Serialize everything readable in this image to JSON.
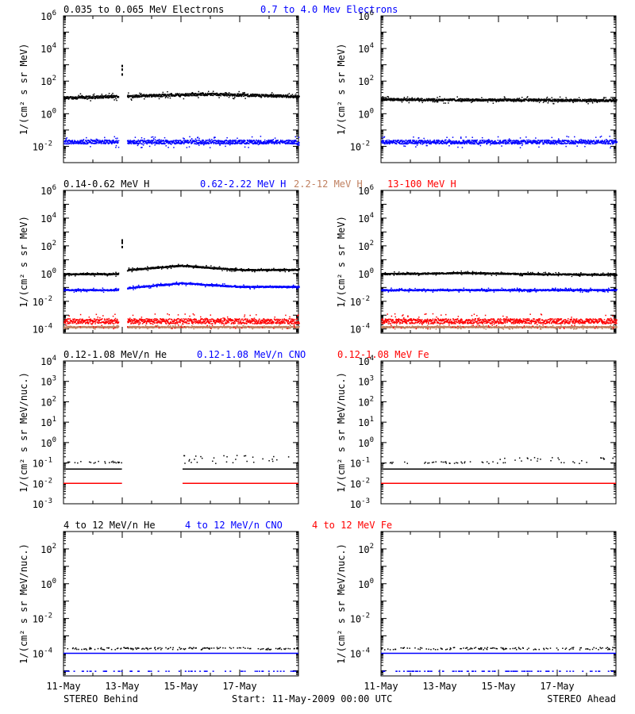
{
  "chart_data": [
    {
      "type": "scatter",
      "id": "electrons",
      "ylabel": "1/(cm² s sr MeV)",
      "yscale": "log",
      "ylim": [
        0.001,
        1000000
      ],
      "yticks": [
        {
          "exp": -2,
          "label": "10",
          "sup": "-2"
        },
        {
          "exp": 0,
          "label": "10",
          "sup": "0"
        },
        {
          "exp": 2,
          "label": "10",
          "sup": "2"
        },
        {
          "exp": 4,
          "label": "10",
          "sup": "4"
        },
        {
          "exp": 6,
          "label": "10",
          "sup": "6"
        }
      ],
      "legend": [
        {
          "text": "0.035 to 0.065 MeV Electrons",
          "color": "#000000"
        },
        {
          "text": "0.7 to 4.0 Mev Electrons",
          "color": "#0000ff"
        }
      ],
      "panels": [
        {
          "spacecraft": "STEREO Behind",
          "gap": [
            1.85,
            2.15
          ],
          "series": [
            {
              "color": "#000000",
              "base": 10,
              "profile": [
                [
                  0,
                  10
                ],
                [
                  3,
                  14
                ],
                [
                  5,
                  17
                ],
                [
                  8,
                  12
                ]
              ],
              "spread": 0.08,
              "spike": {
                "x": 2.0,
                "values": [
                  1000,
                  600,
                  300
                ]
              }
            },
            {
              "color": "#0000ff",
              "base": 0.02,
              "profile": [
                [
                  0,
                  0.02
                ],
                [
                  8,
                  0.02
                ]
              ],
              "spread": 0.12
            }
          ]
        },
        {
          "spacecraft": "STEREO Ahead",
          "gap": null,
          "series": [
            {
              "color": "#000000",
              "base": 7,
              "profile": [
                [
                  0,
                  8
                ],
                [
                  8,
                  7
                ]
              ],
              "spread": 0.07
            },
            {
              "color": "#0000ff",
              "base": 0.02,
              "profile": [
                [
                  0,
                  0.02
                ],
                [
                  8,
                  0.02
                ]
              ],
              "spread": 0.12
            }
          ]
        }
      ]
    },
    {
      "type": "scatter",
      "id": "protons",
      "ylabel": "1/(cm² s sr MeV)",
      "yscale": "log",
      "ylim": [
        5e-05,
        1000000
      ],
      "yticks": [
        {
          "exp": -4,
          "label": "10",
          "sup": "-4"
        },
        {
          "exp": -2,
          "label": "10",
          "sup": "-2"
        },
        {
          "exp": 0,
          "label": "10",
          "sup": "0"
        },
        {
          "exp": 2,
          "label": "10",
          "sup": "2"
        },
        {
          "exp": 4,
          "label": "10",
          "sup": "4"
        },
        {
          "exp": 6,
          "label": "10",
          "sup": "6"
        }
      ],
      "legend": [
        {
          "text": "0.14-0.62 MeV H",
          "color": "#000000"
        },
        {
          "text": "0.62-2.22 MeV H",
          "color": "#0000ff"
        },
        {
          "text": "2.2-12 MeV H",
          "color": "#c08060"
        },
        {
          "text": "13-100 MeV H",
          "color": "#ff0000"
        }
      ],
      "panels": [
        {
          "spacecraft": "STEREO Behind",
          "gap": [
            1.85,
            2.15
          ],
          "series": [
            {
              "color": "#000000",
              "base": 1.0,
              "profile": [
                [
                  0,
                  1.0
                ],
                [
                  1.8,
                  1.0
                ],
                [
                  2.2,
                  2.0
                ],
                [
                  4,
                  4
                ],
                [
                  6,
                  2
                ],
                [
                  8,
                  2
                ]
              ],
              "spread": 0.05,
              "spike": {
                "x": 2.0,
                "values": [
                  300,
                  200,
                  100
                ]
              }
            },
            {
              "color": "#0000ff",
              "base": 0.07,
              "profile": [
                [
                  0,
                  0.07
                ],
                [
                  1.8,
                  0.07
                ],
                [
                  2.2,
                  0.1
                ],
                [
                  4,
                  0.22
                ],
                [
                  6,
                  0.12
                ],
                [
                  8,
                  0.12
                ]
              ],
              "spread": 0.05
            },
            {
              "color": "#c08060",
              "base": 0.00015,
              "profile": [
                [
                  0,
                  0.00015
                ],
                [
                  8,
                  0.00015
                ]
              ],
              "spread": 0.05
            },
            {
              "color": "#ff0000",
              "base": 0.0004,
              "profile": [
                [
                  0,
                  0.0004
                ],
                [
                  8,
                  0.0004
                ]
              ],
              "spread": 0.18
            }
          ]
        },
        {
          "spacecraft": "STEREO Ahead",
          "gap": null,
          "series": [
            {
              "color": "#000000",
              "base": 1.0,
              "profile": [
                [
                  0,
                  1.0
                ],
                [
                  3,
                  1.2
                ],
                [
                  5,
                  1.0
                ],
                [
                  8,
                  0.9
                ]
              ],
              "spread": 0.05
            },
            {
              "color": "#0000ff",
              "base": 0.07,
              "profile": [
                [
                  0,
                  0.07
                ],
                [
                  8,
                  0.07
                ]
              ],
              "spread": 0.05
            },
            {
              "color": "#c08060",
              "base": 0.00015,
              "profile": [
                [
                  0,
                  0.00015
                ],
                [
                  8,
                  0.00015
                ]
              ],
              "spread": 0.05
            },
            {
              "color": "#ff0000",
              "base": 0.0004,
              "profile": [
                [
                  0,
                  0.0004
                ],
                [
                  8,
                  0.0004
                ]
              ],
              "spread": 0.18
            }
          ]
        }
      ]
    },
    {
      "type": "scatter",
      "id": "heavy-ions-low",
      "ylabel": "1/(cm² s sr MeV/nuc.)",
      "yscale": "log",
      "ylim": [
        0.001,
        10000
      ],
      "yticks": [
        {
          "exp": -3,
          "label": "10",
          "sup": "-3"
        },
        {
          "exp": -2,
          "label": "10",
          "sup": "-2"
        },
        {
          "exp": -1,
          "label": "10",
          "sup": "-1"
        },
        {
          "exp": 0,
          "label": "10",
          "sup": "0"
        },
        {
          "exp": 1,
          "label": "10",
          "sup": "1"
        },
        {
          "exp": 2,
          "label": "10",
          "sup": "2"
        },
        {
          "exp": 3,
          "label": "10",
          "sup": "3"
        },
        {
          "exp": 4,
          "label": "10",
          "sup": "4"
        }
      ],
      "legend": [
        {
          "text": "0.12-1.08 MeV/n He",
          "color": "#000000"
        },
        {
          "text": "0.12-1.08 MeV/n CNO",
          "color": "#0000ff"
        },
        {
          "text": "0.12-1.08 MeV Fe",
          "color": "#ff0000"
        }
      ],
      "panels": [
        {
          "spacecraft": "STEREO Behind",
          "gap": [
            2.0,
            4.05
          ],
          "series": [
            {
              "color": "#000000",
              "base": 0.05,
              "profile": [
                [
                  0,
                  0.05
                ],
                [
                  8,
                  0.05
                ]
              ],
              "spread": 0.0,
              "line": true,
              "upper": [
                0.1,
                0.25
              ]
            },
            {
              "color": "#0000ff",
              "base": 0.01,
              "profile": [
                [
                  0,
                  0.01
                ],
                [
                  8,
                  0.01
                ]
              ],
              "spread": 0.0,
              "line": true
            },
            {
              "color": "#ff0000",
              "base": 0.01,
              "profile": [
                [
                  0,
                  0.01
                ],
                [
                  8,
                  0.01
                ]
              ],
              "spread": 0.0,
              "line": true
            }
          ]
        },
        {
          "spacecraft": "STEREO Ahead",
          "gap": null,
          "series": [
            {
              "color": "#000000",
              "base": 0.05,
              "profile": [
                [
                  0,
                  0.05
                ],
                [
                  8,
                  0.05
                ]
              ],
              "spread": 0.0,
              "line": true,
              "upper": [
                0.1,
                0.2
              ]
            },
            {
              "color": "#0000ff",
              "base": 0.01,
              "profile": [
                [
                  0,
                  0.01
                ],
                [
                  8,
                  0.01
                ]
              ],
              "spread": 0.0,
              "line": true
            },
            {
              "color": "#ff0000",
              "base": 0.01,
              "profile": [
                [
                  0,
                  0.01
                ],
                [
                  8,
                  0.01
                ]
              ],
              "spread": 0.0,
              "line": true
            }
          ]
        }
      ]
    },
    {
      "type": "scatter",
      "id": "heavy-ions-high",
      "ylabel": "1/(cm² s sr MeV/nuc.)",
      "yscale": "log",
      "ylim": [
        5e-06,
        1000
      ],
      "yticks": [
        {
          "exp": -4,
          "label": "10",
          "sup": "-4"
        },
        {
          "exp": -2,
          "label": "10",
          "sup": "-2"
        },
        {
          "exp": 0,
          "label": "10",
          "sup": "0"
        },
        {
          "exp": 2,
          "label": "10",
          "sup": "2"
        }
      ],
      "legend": [
        {
          "text": "4 to 12 MeV/n He",
          "color": "#000000"
        },
        {
          "text": "4 to 12 MeV/n CNO",
          "color": "#0000ff"
        },
        {
          "text": "4 to 12 MeV Fe",
          "color": "#ff0000"
        }
      ],
      "panels": [
        {
          "spacecraft": "STEREO Behind",
          "gap": null,
          "series": [
            {
              "color": "#000000",
              "base": 0.0002,
              "profile": [
                [
                  0,
                  0.0002
                ],
                [
                  8,
                  0.0002
                ]
              ],
              "spread": 0.0,
              "sparse": true
            },
            {
              "color": "#0000ff",
              "base": 0.0001,
              "profile": [
                [
                  0,
                  0.0001
                ],
                [
                  8,
                  0.0001
                ]
              ],
              "spread": 0.0,
              "line": true,
              "low": 1e-05
            }
          ]
        },
        {
          "spacecraft": "STEREO Ahead",
          "gap": null,
          "series": [
            {
              "color": "#000000",
              "base": 0.0002,
              "profile": [
                [
                  0,
                  0.0002
                ],
                [
                  8,
                  0.0002
                ]
              ],
              "spread": 0.0,
              "sparse": true
            },
            {
              "color": "#0000ff",
              "base": 0.0001,
              "profile": [
                [
                  0,
                  0.0001
                ],
                [
                  8,
                  0.0001
                ]
              ],
              "spread": 0.0,
              "line": true,
              "low": 1e-05
            }
          ]
        }
      ]
    }
  ],
  "x_axis": {
    "range_days": [
      0,
      8
    ],
    "tick_labels": [
      {
        "day": 0,
        "label": "11-May"
      },
      {
        "day": 2,
        "label": "13-May"
      },
      {
        "day": 4,
        "label": "15-May"
      },
      {
        "day": 6,
        "label": "17-May"
      }
    ],
    "minor_tick_days": [
      1,
      3,
      5,
      7
    ]
  },
  "footer": {
    "left": "STEREO Behind",
    "center": "Start: 11-May-2009 00:00 UTC",
    "right": "STEREO Ahead"
  }
}
